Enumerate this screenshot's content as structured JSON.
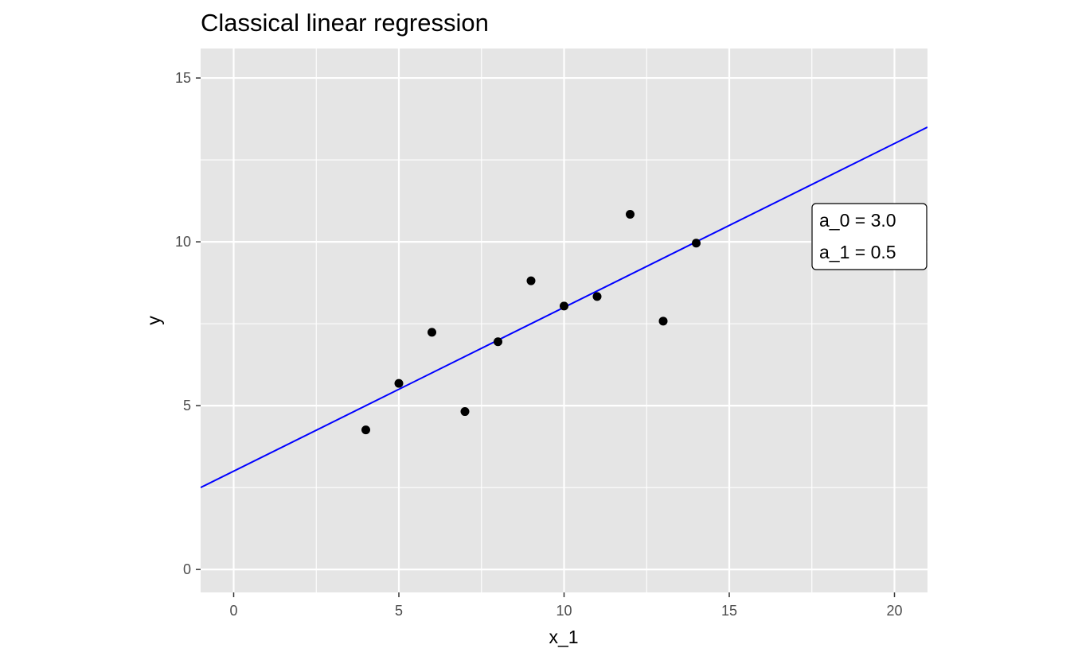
{
  "chart_data": {
    "type": "scatter",
    "title": "Classical linear regression",
    "xlabel": "x_1",
    "ylabel": "y",
    "xlim": [
      -1,
      21
    ],
    "ylim": [
      -0.7,
      15.9
    ],
    "x_ticks": [
      0,
      5,
      10,
      15,
      20
    ],
    "y_ticks": [
      0,
      5,
      10,
      15
    ],
    "grid": true,
    "points": {
      "x": [
        4,
        5,
        6,
        7,
        8,
        9,
        10,
        11,
        12,
        13,
        14
      ],
      "y": [
        4.26,
        5.68,
        7.24,
        4.82,
        6.95,
        8.81,
        8.04,
        8.33,
        10.84,
        7.58,
        9.96
      ]
    },
    "fit_line": {
      "intercept": 3.0,
      "slope": 0.5
    },
    "annotation": {
      "lines": [
        "a_0 = 3.0",
        "a_1 = 0.5"
      ],
      "position": "right"
    },
    "colors": {
      "panel": "#e5e5e5",
      "grid": "#ffffff",
      "points": "#000000",
      "line": "#0000ff"
    }
  }
}
